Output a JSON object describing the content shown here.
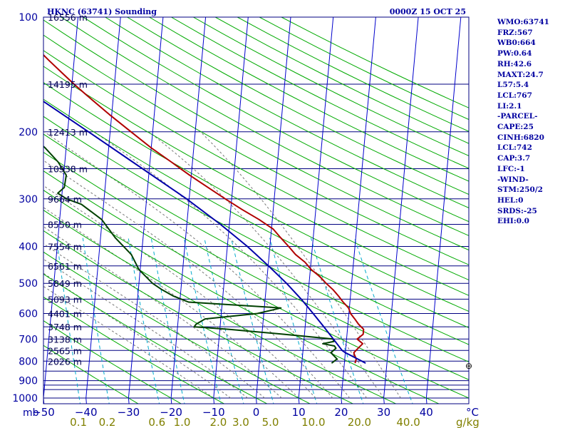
{
  "colors": {
    "frame": "#000080",
    "isobar": "#000080",
    "isotherm": "#0000cc",
    "dry_adiabat": "#00aa00",
    "moist_adiabat": "#777777",
    "mixing_ratio": "#00aacc",
    "temperature": "#b00000",
    "dewpoint": "#004000",
    "parcel": "#0000aa",
    "axis_text": "#0000a0",
    "mixing_text": "#808000"
  },
  "chart_data": {
    "type": "line",
    "title": "HKNC (63741) Sounding",
    "time": "0000Z 15 OCT 25",
    "xlabel": "°C",
    "ylabel": "mb",
    "mixing_ratio_unit": "g/kg",
    "skew_per_decade": 48.5,
    "xlim": [
      -50,
      50
    ],
    "ylim": [
      1000,
      100
    ],
    "pressure_ticks": [
      100,
      200,
      300,
      400,
      500,
      600,
      700,
      800,
      900,
      1000
    ],
    "temperature_ticks": [
      -50,
      -40,
      -30,
      -20,
      -10,
      0,
      10,
      20,
      30,
      40
    ],
    "heights": [
      {
        "p": 100,
        "label": "16556 m"
      },
      {
        "p": 150,
        "label": "14195 m"
      },
      {
        "p": 200,
        "label": "12413 m"
      },
      {
        "p": 250,
        "label": "10938 m"
      },
      {
        "p": 300,
        "label": "9664 m"
      },
      {
        "p": 350,
        "label": "8550 m"
      },
      {
        "p": 400,
        "label": "7554 m"
      },
      {
        "p": 450,
        "label": "6561 m"
      },
      {
        "p": 500,
        "label": "5849 m"
      },
      {
        "p": 550,
        "label": "5093 m"
      },
      {
        "p": 600,
        "label": "4401 m"
      },
      {
        "p": 650,
        "label": "3748 m"
      },
      {
        "p": 700,
        "label": "3138 m"
      },
      {
        "p": 750,
        "label": "2565 m"
      },
      {
        "p": 800,
        "label": "2026 m"
      }
    ],
    "extra_isobars": [
      850,
      925,
      950
    ],
    "mixing_ratios": [
      {
        "w": 0.1,
        "label": "0.1"
      },
      {
        "w": 0.2,
        "label": "0.2"
      },
      {
        "w": 0.6,
        "label": "0.6"
      },
      {
        "w": 1.0,
        "label": "1.0"
      },
      {
        "w": 2.0,
        "label": "2.0"
      },
      {
        "w": 3.0,
        "label": "3.0"
      },
      {
        "w": 5.0,
        "label": "5.0"
      },
      {
        "w": 10.0,
        "label": "10.0"
      },
      {
        "w": 20.0,
        "label": "20.0"
      },
      {
        "w": 40.0,
        "label": "40.0"
      }
    ],
    "series": [
      {
        "name": "Temperature",
        "points": [
          [
            810,
            22.5
          ],
          [
            790,
            22.7
          ],
          [
            770,
            22.2
          ],
          [
            760,
            22.0
          ],
          [
            740,
            22.9
          ],
          [
            720,
            23.9
          ],
          [
            700,
            22.5
          ],
          [
            680,
            23.8
          ],
          [
            660,
            23.8
          ],
          [
            640,
            22.5
          ],
          [
            620,
            21.5
          ],
          [
            600,
            20.4
          ],
          [
            580,
            19.8
          ],
          [
            560,
            18.4
          ],
          [
            540,
            17.2
          ],
          [
            520,
            15.8
          ],
          [
            500,
            14.0
          ],
          [
            480,
            12.4
          ],
          [
            460,
            10.2
          ],
          [
            440,
            8.6
          ],
          [
            420,
            6.2
          ],
          [
            400,
            4.4
          ],
          [
            380,
            2.4
          ],
          [
            360,
            0.4
          ],
          [
            340,
            -3.1
          ],
          [
            320,
            -7.3
          ],
          [
            300,
            -11.5
          ],
          [
            280,
            -15.8
          ],
          [
            260,
            -20.4
          ],
          [
            240,
            -25.0
          ],
          [
            220,
            -30.1
          ],
          [
            200,
            -35.1
          ],
          [
            180,
            -40.6
          ],
          [
            160,
            -46.4
          ],
          [
            150,
            -49.5
          ],
          [
            140,
            -52.6
          ],
          [
            130,
            -55.9
          ],
          [
            120,
            -59.3
          ],
          [
            110,
            -61.7
          ],
          [
            103,
            -62.2
          ],
          [
            100,
            -61.0
          ]
        ]
      },
      {
        "name": "Dewpoint",
        "points": [
          [
            810,
            17.0
          ],
          [
            790,
            18.2
          ],
          [
            760,
            16.6
          ],
          [
            740,
            17.7
          ],
          [
            730,
            17.3
          ],
          [
            720,
            14.5
          ],
          [
            710,
            17.1
          ],
          [
            700,
            16.8
          ],
          [
            680,
            5.2
          ],
          [
            660,
            -8.0
          ],
          [
            650,
            -16.1
          ],
          [
            640,
            -15.7
          ],
          [
            620,
            -13.7
          ],
          [
            600,
            -1.5
          ],
          [
            580,
            3.9
          ],
          [
            560,
            -17.9
          ],
          [
            540,
            -21.6
          ],
          [
            520,
            -24.4
          ],
          [
            500,
            -26.8
          ],
          [
            460,
            -30.3
          ],
          [
            420,
            -32.4
          ],
          [
            380,
            -36.5
          ],
          [
            340,
            -40.1
          ],
          [
            310,
            -45.2
          ],
          [
            300,
            -48.8
          ],
          [
            290,
            -51.0
          ],
          [
            280,
            -49.6
          ],
          [
            260,
            -49.4
          ],
          [
            240,
            -51.6
          ],
          [
            220,
            -55.0
          ],
          [
            200,
            -59.9
          ],
          [
            180,
            -62.2
          ],
          [
            170,
            -62.5
          ],
          [
            160,
            -64.2
          ],
          [
            150,
            -67.1
          ],
          [
            140,
            -70.5
          ],
          [
            130,
            -74.7
          ],
          [
            120,
            -78.2
          ],
          [
            110,
            -78.2
          ],
          [
            103,
            -74.1
          ],
          [
            100,
            -71.8
          ]
        ]
      },
      {
        "name": "Parcel",
        "points": [
          [
            810,
            25.0
          ],
          [
            760,
            20.0
          ],
          [
            750,
            19.2
          ],
          [
            700,
            16.9
          ],
          [
            650,
            14.4
          ],
          [
            600,
            11.6
          ],
          [
            550,
            8.5
          ],
          [
            500,
            4.7
          ],
          [
            450,
            0.1
          ],
          [
            400,
            -5.3
          ],
          [
            350,
            -12.1
          ],
          [
            300,
            -20.6
          ],
          [
            250,
            -31.6
          ],
          [
            200,
            -45.1
          ],
          [
            150,
            -62.7
          ],
          [
            130,
            -71.2
          ]
        ]
      }
    ],
    "wind_marker": {
      "p": 820,
      "label": "⊕"
    }
  },
  "info": {
    "lines": [
      "WMO:63741",
      "FRZ:567",
      "WB0:664",
      "PW:0.64",
      "RH:42.6",
      "MAXT:24.7",
      "L57:5.4",
      "LCL:767",
      "LI:2.1",
      "-PARCEL-",
      "CAPE:25",
      "CINH:6820",
      "LCL:742",
      "CAP:3.7",
      "LFC:-1",
      "-WIND-",
      "STM:250/2",
      "HEL:0",
      "SRDS:-25",
      "EHI:0.0"
    ]
  }
}
